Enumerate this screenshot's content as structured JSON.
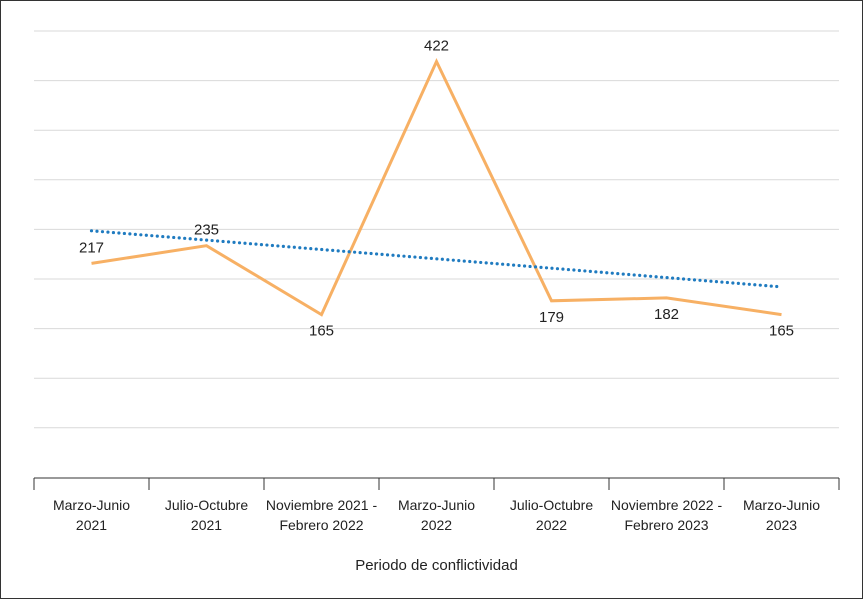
{
  "chart_data": {
    "type": "line",
    "categories": [
      [
        "Marzo-Junio",
        "2021"
      ],
      [
        "Julio-Octubre",
        "2021"
      ],
      [
        "Noviembre 2021 -",
        "Febrero 2022"
      ],
      [
        "Marzo-Junio",
        "2022"
      ],
      [
        "Julio-Octubre",
        "2022"
      ],
      [
        "Noviembre 2022 -",
        "Febrero 2023"
      ],
      [
        "Marzo-Junio",
        "2023"
      ]
    ],
    "series": [
      {
        "values": [
          217,
          235,
          165,
          422,
          179,
          182,
          165
        ],
        "color": "#F7B064",
        "style": "solid"
      },
      {
        "values": [
          250.1,
          240.6,
          231.1,
          221.6,
          212.1,
          202.6,
          193.1
        ],
        "color": "#1F7BC0",
        "style": "dotted"
      }
    ],
    "data_labels": [
      "217",
      "235",
      "165",
      "422",
      "179",
      "182",
      "165"
    ],
    "xlabel": "Periodo de conflictividad",
    "ylim": [
      0,
      450
    ],
    "grid": true
  }
}
